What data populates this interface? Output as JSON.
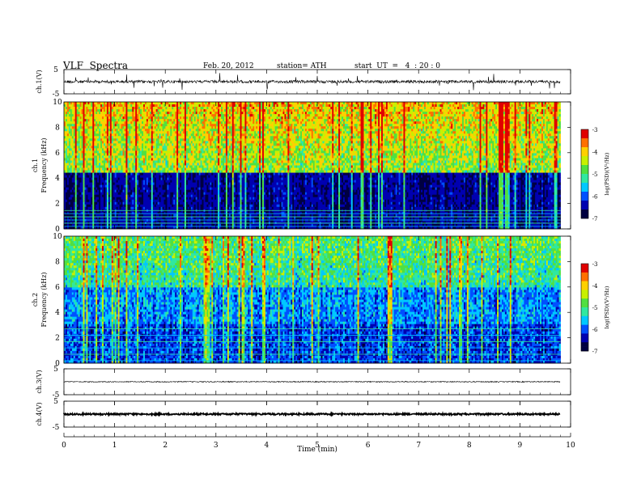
{
  "header": {
    "title": "VLF  Spectra",
    "date": "Feb. 20, 2012",
    "station": "station= ATH",
    "start": "start  UT  =   4  : 20 : 0"
  },
  "colors": {
    "scale": [
      "#000040",
      "#0000b0",
      "#0050ff",
      "#00c8ff",
      "#30e8a0",
      "#50e040",
      "#c8f000",
      "#ffd000",
      "#ff7000",
      "#e00000",
      "#fff0f0"
    ]
  },
  "chart_data": [
    {
      "type": "line",
      "panel": "ch1-waveform",
      "ylabel": "ch.1(V)",
      "ylim": [
        -5,
        5
      ],
      "yticks": [
        "5",
        "-5"
      ],
      "baseline": 0,
      "noise": "dense bursts with spikes up to about -4"
    },
    {
      "type": "heatmap",
      "panel": "ch1-spectrogram",
      "ylabel": "ch.1\nFrequency  (kHz)",
      "ylim": [
        0,
        10
      ],
      "yticks": [
        "0",
        "2",
        "4",
        "6",
        "8",
        "10"
      ],
      "colorbar": {
        "label": "log(PSD)(V²/Hz)",
        "range": [
          -7,
          -3
        ],
        "ticks": [
          "-3",
          "-4",
          "-5",
          "-6",
          "-7"
        ]
      },
      "structure": "dark blue below about 4 kHz, green/yellow/red broadband above with vertical spherics"
    },
    {
      "type": "heatmap",
      "panel": "ch2-spectrogram",
      "ylabel": "ch.2\nFrequency  (kHz)",
      "ylim": [
        0,
        10
      ],
      "yticks": [
        "0",
        "2",
        "4",
        "6",
        "8",
        "10"
      ],
      "colorbar": {
        "label": "log(PSD)(V²/Hz)",
        "range": [
          -7,
          -3
        ],
        "ticks": [
          "-3",
          "-4",
          "-5",
          "-6",
          "-7"
        ]
      },
      "structure": "mostly blue/cyan with green above 6 kHz and many vertical spherics"
    },
    {
      "type": "line",
      "panel": "ch3-waveform",
      "ylabel": "ch.3(V)",
      "ylim": [
        -5,
        5
      ],
      "yticks": [
        "5",
        "-5"
      ],
      "baseline": 0
    },
    {
      "type": "line",
      "panel": "ch4-waveform",
      "ylabel": "ch.4(V)",
      "ylim": [
        -5,
        5
      ],
      "yticks": [
        "5",
        "-5"
      ],
      "baseline": 0
    }
  ],
  "x_axis": {
    "label": "Time  (min)",
    "xlim": [
      0,
      10
    ],
    "ticks": [
      "0",
      "1",
      "2",
      "3",
      "4",
      "5",
      "6",
      "7",
      "8",
      "9",
      "10"
    ],
    "data_end": 9.8
  }
}
